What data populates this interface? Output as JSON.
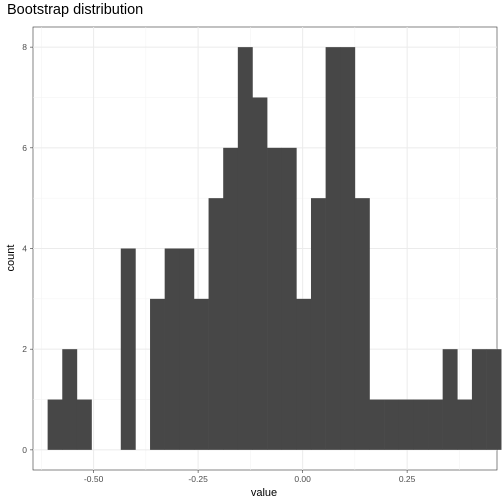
{
  "chart_data": {
    "type": "bar",
    "title": "Bootstrap distribution",
    "xlabel": "value",
    "ylabel": "count",
    "xlim": [
      -0.645,
      0.465
    ],
    "ylim": [
      -0.4,
      8.4
    ],
    "grid": true,
    "x_ticks": [
      {
        "value": -0.5,
        "label": "-0.50"
      },
      {
        "value": -0.25,
        "label": "-0.25"
      },
      {
        "value": 0.0,
        "label": "0.00"
      },
      {
        "value": 0.25,
        "label": "0.25"
      }
    ],
    "y_ticks": [
      {
        "value": 0,
        "label": "0"
      },
      {
        "value": 2,
        "label": "2"
      },
      {
        "value": 4,
        "label": "4"
      },
      {
        "value": 6,
        "label": "6"
      },
      {
        "value": 8,
        "label": "8"
      }
    ],
    "bin_width": 0.035,
    "bin_start": -0.61,
    "counts": [
      1,
      2,
      1,
      0,
      0,
      4,
      0,
      3,
      4,
      4,
      3,
      5,
      6,
      8,
      7,
      6,
      6,
      3,
      5,
      8,
      8,
      5,
      1,
      1,
      1,
      1,
      1,
      2,
      1,
      2,
      2
    ],
    "bar_color": "#474747"
  }
}
